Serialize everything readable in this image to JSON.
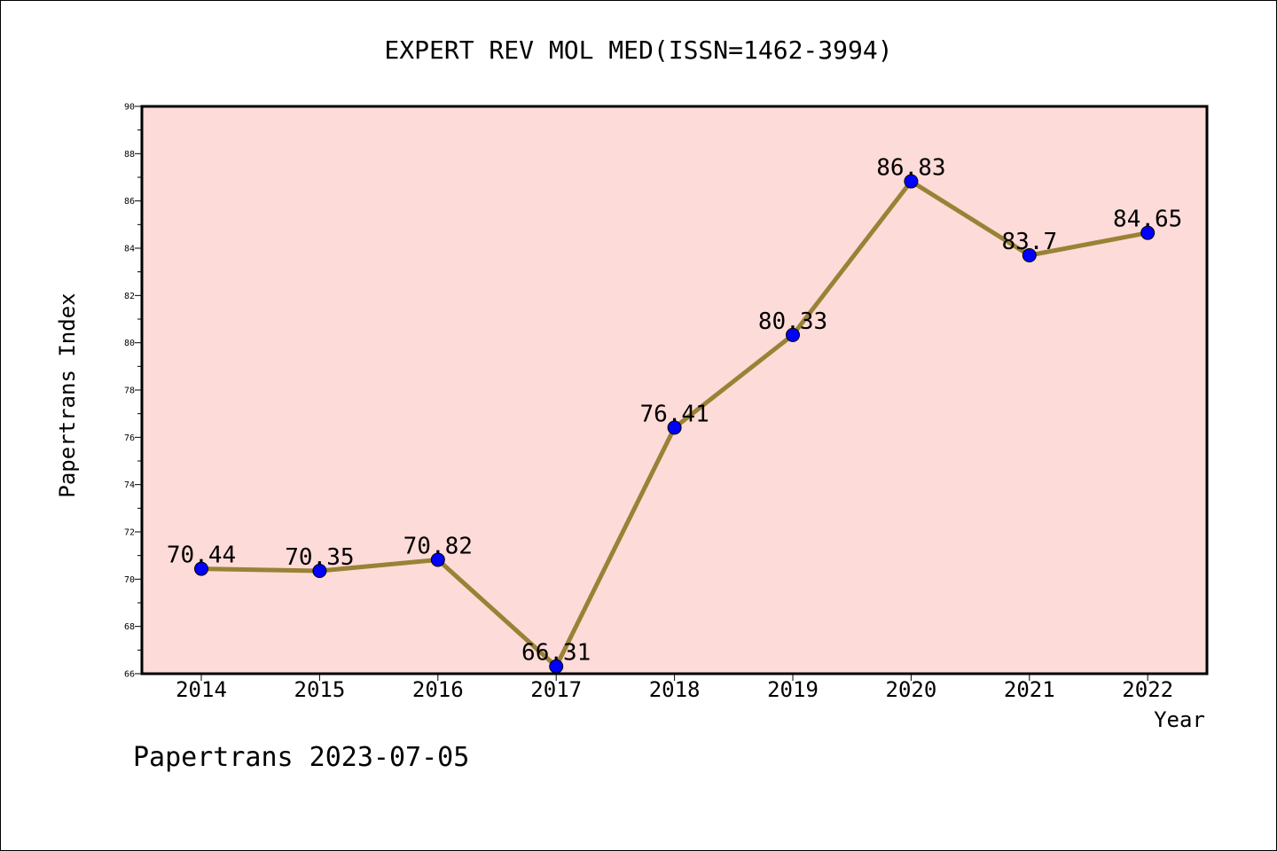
{
  "chart_data": {
    "type": "line",
    "title": "EXPERT REV MOL MED(ISSN=1462-3994)",
    "xlabel": "Year",
    "ylabel": "Papertrans Index",
    "categories": [
      "2014",
      "2015",
      "2016",
      "2017",
      "2018",
      "2019",
      "2020",
      "2021",
      "2022"
    ],
    "values": [
      70.44,
      70.35,
      70.82,
      66.31,
      76.41,
      80.33,
      86.83,
      83.7,
      84.65
    ],
    "data_labels": [
      "70.44",
      "70.35",
      "70.82",
      "66.31",
      "76.41",
      "80.33",
      "86.83",
      "83.7",
      "84.65"
    ],
    "ylim": [
      66,
      90
    ],
    "yticks": [
      "66",
      "68",
      "70",
      "72",
      "74",
      "76",
      "78",
      "80",
      "82",
      "84",
      "86",
      "88",
      "90"
    ],
    "grid": false,
    "legend": "none",
    "colors": {
      "plot_background": "#fddbd8",
      "line": "#998236",
      "marker": "#0000ff"
    }
  },
  "footer": {
    "watermark": "Papertrans 2023-07-05"
  }
}
